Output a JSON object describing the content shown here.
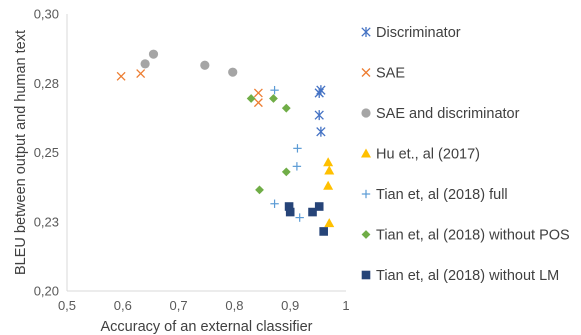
{
  "chart_data": {
    "type": "scatter",
    "title": "",
    "xlabel": "Accuracy of an external classifier",
    "ylabel": "BLEU between output and human text",
    "xlim": [
      0.5,
      1.0
    ],
    "ylim": [
      0.2,
      0.3
    ],
    "x_ticks": [
      "0,5",
      "0,6",
      "0,7",
      "0,8",
      "0,9",
      "1"
    ],
    "x_tick_values": [
      0.5,
      0.6,
      0.7,
      0.8,
      0.9,
      1.0
    ],
    "y_ticks": [
      "0,20",
      "0,23",
      "0,25",
      "0,28",
      "0,30"
    ],
    "y_tick_values": [
      0.2,
      0.225,
      0.25,
      0.275,
      0.3
    ],
    "grid": false,
    "legend_position": "right",
    "series": [
      {
        "name": "Discriminator",
        "marker": "star",
        "color": "#4472C4",
        "points": [
          [
            0.952,
            0.2715
          ],
          [
            0.955,
            0.2725
          ],
          [
            0.952,
            0.2635
          ],
          [
            0.955,
            0.2575
          ]
        ]
      },
      {
        "name": "SAE",
        "marker": "x",
        "color": "#ED7D31",
        "points": [
          [
            0.597,
            0.2775
          ],
          [
            0.632,
            0.2785
          ],
          [
            0.843,
            0.2715
          ],
          [
            0.843,
            0.268
          ]
        ]
      },
      {
        "name": "SAE and discriminator",
        "marker": "circle",
        "color": "#A5A5A5",
        "points": [
          [
            0.64,
            0.282
          ],
          [
            0.655,
            0.2855
          ],
          [
            0.747,
            0.2815
          ],
          [
            0.797,
            0.279
          ]
        ]
      },
      {
        "name": "Hu et., al (2017)",
        "marker": "triangle",
        "color": "#FFC000",
        "points": [
          [
            0.968,
            0.2465
          ],
          [
            0.97,
            0.2435
          ],
          [
            0.968,
            0.238
          ],
          [
            0.97,
            0.2245
          ]
        ]
      },
      {
        "name": "Tian et, al (2018) full",
        "marker": "plus",
        "color": "#5B9BD5",
        "points": [
          [
            0.872,
            0.2725
          ],
          [
            0.913,
            0.2515
          ],
          [
            0.912,
            0.245
          ],
          [
            0.872,
            0.2315
          ],
          [
            0.917,
            0.2265
          ]
        ]
      },
      {
        "name": "Tian et, al (2018) without POS",
        "marker": "diamond",
        "color": "#70AD47",
        "points": [
          [
            0.83,
            0.2695
          ],
          [
            0.87,
            0.2695
          ],
          [
            0.893,
            0.266
          ],
          [
            0.893,
            0.243
          ],
          [
            0.845,
            0.2365
          ]
        ]
      },
      {
        "name": "Tian et, al (2018) without LM",
        "marker": "square",
        "color": "#264478",
        "points": [
          [
            0.898,
            0.2305
          ],
          [
            0.9,
            0.2285
          ],
          [
            0.94,
            0.2285
          ],
          [
            0.952,
            0.2305
          ],
          [
            0.96,
            0.2215
          ]
        ]
      }
    ]
  }
}
